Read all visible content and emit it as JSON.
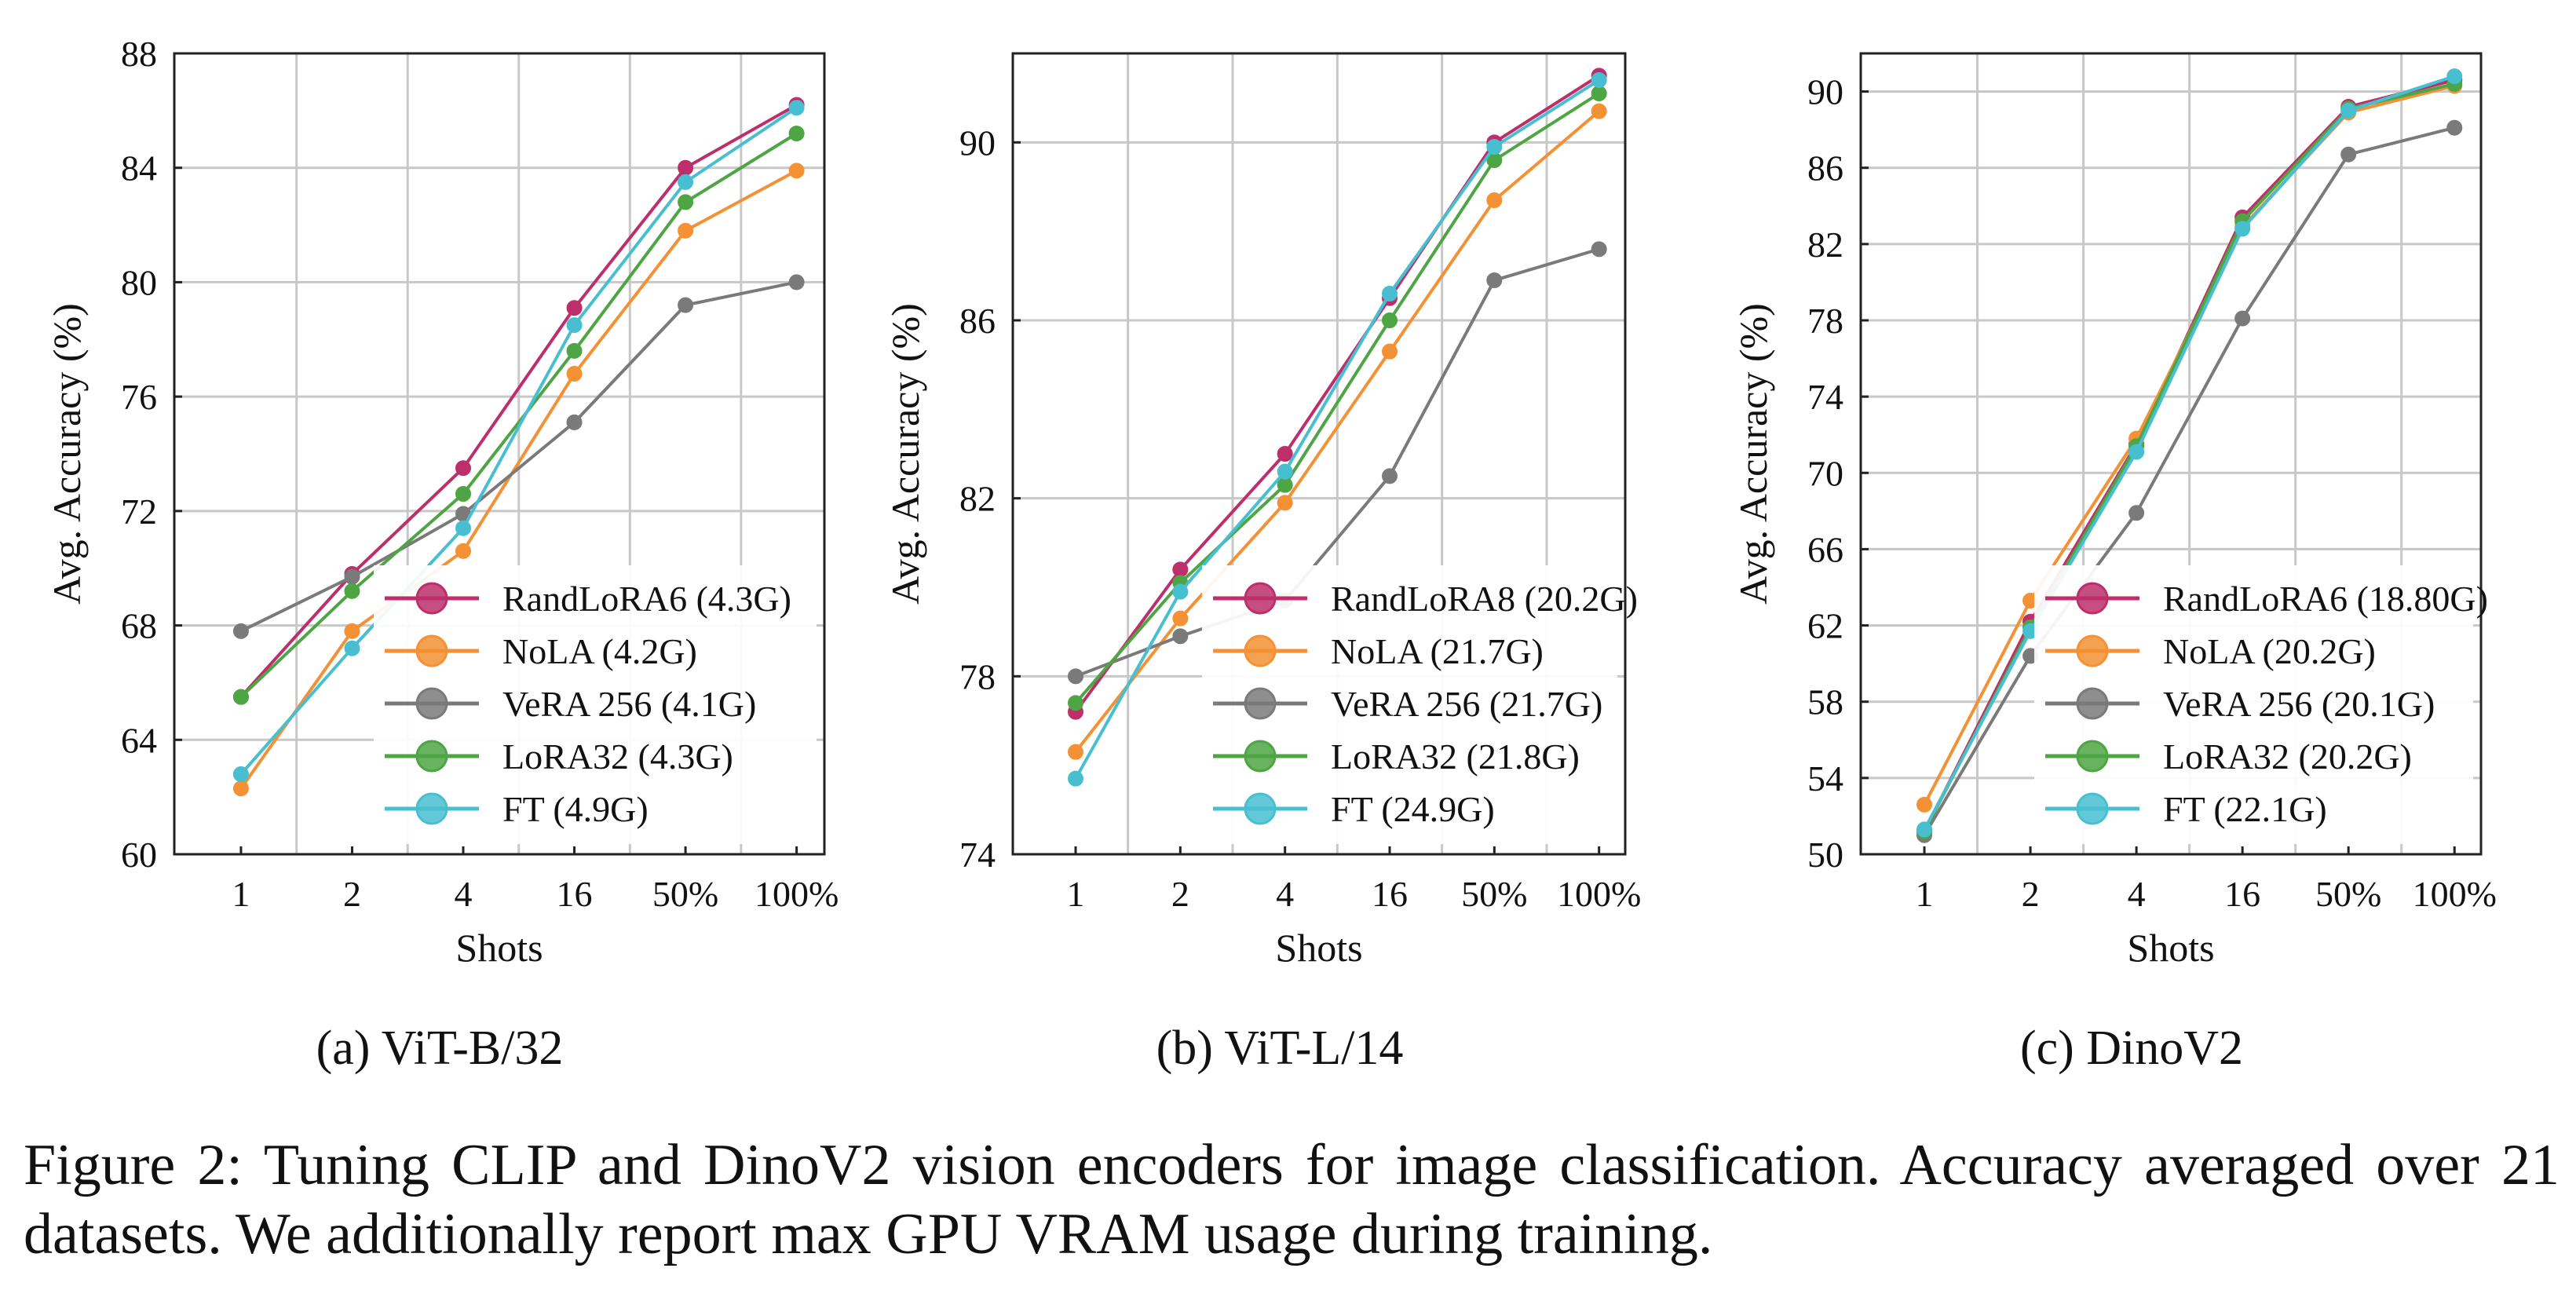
{
  "chart_data": [
    {
      "type": "line",
      "subcaption": "(a) ViT-B/32",
      "xlabel": "Shots",
      "ylabel": "Avg. Accuracy (%)",
      "categories": [
        "1",
        "2",
        "4",
        "16",
        "50%",
        "100%"
      ],
      "ylim": [
        60,
        88
      ],
      "yticks": [
        "60",
        "64",
        "68",
        "72",
        "76",
        "80",
        "84",
        "88"
      ],
      "grid": true,
      "legend_position": "lower-right",
      "series": [
        {
          "name": "RandLoRA6 (4.3G)",
          "color": "#bd2f6b",
          "values": [
            65.5,
            69.8,
            73.5,
            79.1,
            84.0,
            86.2
          ]
        },
        {
          "name": "NoLA (4.2G)",
          "color": "#f39134",
          "values": [
            62.3,
            67.8,
            70.6,
            76.8,
            81.8,
            83.9
          ]
        },
        {
          "name": "VeRA 256 (4.1G)",
          "color": "#7a7a7a",
          "values": [
            67.8,
            69.7,
            71.9,
            75.1,
            79.2,
            80.0
          ]
        },
        {
          "name": "LoRA32 (4.3G)",
          "color": "#4ea544",
          "values": [
            65.5,
            69.2,
            72.6,
            77.6,
            82.8,
            85.2
          ]
        },
        {
          "name": "FT (4.9G)",
          "color": "#48bfd1",
          "values": [
            62.8,
            67.2,
            71.4,
            78.5,
            83.5,
            86.1
          ]
        }
      ]
    },
    {
      "type": "line",
      "subcaption": "(b) ViT-L/14",
      "xlabel": "Shots",
      "ylabel": "Avg. Accuracy (%)",
      "categories": [
        "1",
        "2",
        "4",
        "16",
        "50%",
        "100%"
      ],
      "ylim": [
        74,
        92
      ],
      "yticks": [
        "74",
        "78",
        "82",
        "86",
        "90"
      ],
      "grid": true,
      "legend_position": "lower-right",
      "series": [
        {
          "name": "RandLoRA8 (20.2G)",
          "color": "#bd2f6b",
          "values": [
            77.2,
            80.4,
            83.0,
            86.5,
            90.0,
            91.5
          ]
        },
        {
          "name": "NoLA (21.7G)",
          "color": "#f39134",
          "values": [
            76.3,
            79.3,
            81.9,
            85.3,
            88.7,
            90.7
          ]
        },
        {
          "name": "VeRA 256 (21.7G)",
          "color": "#7a7a7a",
          "values": [
            78.0,
            78.9,
            79.7,
            82.5,
            86.9,
            87.6
          ]
        },
        {
          "name": "LoRA32 (21.8G)",
          "color": "#4ea544",
          "values": [
            77.4,
            80.1,
            82.3,
            86.0,
            89.6,
            91.1
          ]
        },
        {
          "name": "FT (24.9G)",
          "color": "#48bfd1",
          "values": [
            75.7,
            79.9,
            82.6,
            86.6,
            89.9,
            91.4
          ]
        }
      ]
    },
    {
      "type": "line",
      "subcaption": "(c) DinoV2",
      "xlabel": "Shots",
      "ylabel": "Avg. Accuracy (%)",
      "categories": [
        "1",
        "2",
        "4",
        "16",
        "50%",
        "100%"
      ],
      "ylim": [
        50,
        92
      ],
      "yticks": [
        "50",
        "54",
        "58",
        "62",
        "66",
        "70",
        "74",
        "78",
        "82",
        "86",
        "90"
      ],
      "grid": true,
      "legend_position": "lower-right",
      "series": [
        {
          "name": "RandLoRA6 (18.80G)",
          "color": "#bd2f6b",
          "values": [
            51.2,
            62.2,
            71.5,
            83.4,
            89.2,
            90.6
          ]
        },
        {
          "name": "NoLA (20.2G)",
          "color": "#f39134",
          "values": [
            52.6,
            63.3,
            71.8,
            82.9,
            88.9,
            90.3
          ]
        },
        {
          "name": "VeRA 256 (20.1G)",
          "color": "#7a7a7a",
          "values": [
            51.0,
            60.4,
            67.9,
            78.1,
            86.7,
            88.1
          ]
        },
        {
          "name": "LoRA32 (20.2G)",
          "color": "#4ea544",
          "values": [
            51.2,
            61.9,
            71.4,
            83.2,
            89.1,
            90.4
          ]
        },
        {
          "name": "FT (22.1G)",
          "color": "#48bfd1",
          "values": [
            51.3,
            61.7,
            71.1,
            82.8,
            89.0,
            90.8
          ]
        }
      ]
    }
  ],
  "caption": {
    "label": "Figure 2:",
    "text": "Tuning CLIP and DinoV2 vision encoders for image classification. Accuracy averaged over 21 datasets. We additionally report max GPU VRAM usage during training."
  }
}
